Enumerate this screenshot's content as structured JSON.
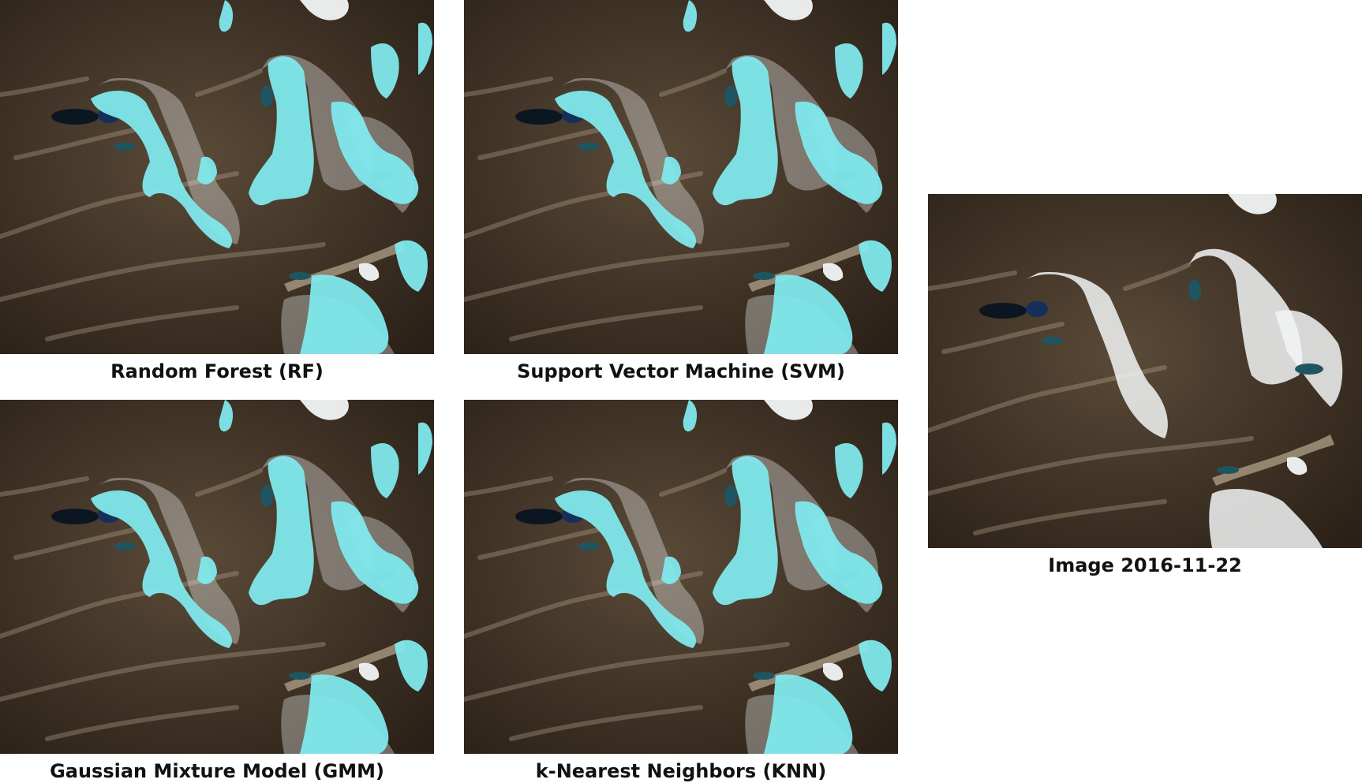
{
  "figure": {
    "panels": [
      {
        "id": "rf",
        "caption": "Random Forest (RF)",
        "overlay": true
      },
      {
        "id": "svm",
        "caption": "Support Vector Machine (SVM)",
        "overlay": true
      },
      {
        "id": "gmm",
        "caption": "Gaussian Mixture Model (GMM)",
        "overlay": true
      },
      {
        "id": "knn",
        "caption": "k-Nearest Neighbors (KNN)",
        "overlay": true
      },
      {
        "id": "img",
        "caption": "Image 2016-11-22",
        "overlay": false
      }
    ],
    "colors": {
      "terrain_dark": "#2a2017",
      "terrain_mid": "#5a4a38",
      "ridge_light": "#b9a98f",
      "snow": "#f2f4f6",
      "glacier_overlay": "#7fe8ec",
      "lake": "#1f5560",
      "lake_dark": "#0b1620"
    }
  }
}
